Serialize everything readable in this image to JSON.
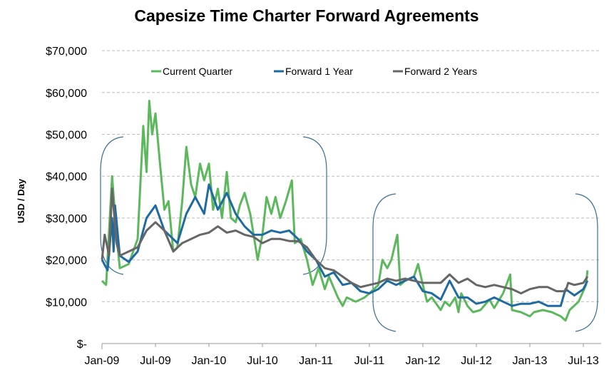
{
  "chart_data": {
    "type": "line",
    "title": "Capesize Time Charter Forward Agreements",
    "xlabel": "",
    "ylabel": "USD / Day",
    "ylim": [
      0,
      70000
    ],
    "yticks": [
      0,
      10000,
      20000,
      30000,
      40000,
      50000,
      60000,
      70000
    ],
    "ytick_labels": [
      "$-",
      "$10,000",
      "$20,000",
      "$30,000",
      "$40,000",
      "$50,000",
      "$60,000",
      "$70,000"
    ],
    "xtick_labels": [
      "Jan-09",
      "Jul-09",
      "Jan-10",
      "Jul-10",
      "Jan-11",
      "Jul-11",
      "Jan-12",
      "Jul-12",
      "Jan-13",
      "Jul-13"
    ],
    "xticks": [
      "2009-01-01",
      "2009-07-01",
      "2010-01-01",
      "2010-07-01",
      "2011-01-01",
      "2011-07-01",
      "2012-01-01",
      "2012-07-01",
      "2013-01-01",
      "2013-07-01"
    ],
    "grid": "horizontal-dashed",
    "legend": "top",
    "series": [
      {
        "name": "Current Quarter",
        "color": "#5cb85c",
        "points": [
          [
            "2009-01-01",
            15000
          ],
          [
            "2009-01-15",
            14000
          ],
          [
            "2009-02-05",
            40000
          ],
          [
            "2009-02-20",
            26000
          ],
          [
            "2009-03-01",
            18000
          ],
          [
            "2009-04-01",
            19000
          ],
          [
            "2009-05-01",
            25000
          ],
          [
            "2009-05-20",
            52000
          ],
          [
            "2009-06-01",
            41000
          ],
          [
            "2009-06-10",
            58000
          ],
          [
            "2009-06-20",
            50000
          ],
          [
            "2009-07-01",
            55000
          ],
          [
            "2009-07-15",
            44000
          ],
          [
            "2009-08-01",
            32000
          ],
          [
            "2009-08-15",
            34000
          ],
          [
            "2009-09-01",
            22000
          ],
          [
            "2009-09-15",
            23000
          ],
          [
            "2009-10-01",
            34000
          ],
          [
            "2009-10-15",
            47000
          ],
          [
            "2009-11-01",
            38000
          ],
          [
            "2009-11-15",
            35000
          ],
          [
            "2009-12-01",
            43000
          ],
          [
            "2009-12-15",
            39000
          ],
          [
            "2010-01-01",
            43000
          ],
          [
            "2010-01-15",
            32000
          ],
          [
            "2010-02-01",
            37000
          ],
          [
            "2010-02-15",
            30000
          ],
          [
            "2010-03-01",
            41000
          ],
          [
            "2010-03-15",
            30000
          ],
          [
            "2010-04-01",
            29000
          ],
          [
            "2010-04-15",
            33000
          ],
          [
            "2010-05-01",
            36000
          ],
          [
            "2010-05-20",
            31000
          ],
          [
            "2010-06-15",
            20000
          ],
          [
            "2010-07-01",
            26000
          ],
          [
            "2010-07-15",
            35000
          ],
          [
            "2010-08-01",
            31000
          ],
          [
            "2010-08-15",
            35000
          ],
          [
            "2010-09-01",
            30000
          ],
          [
            "2010-09-20",
            34000
          ],
          [
            "2010-10-10",
            39000
          ],
          [
            "2010-10-20",
            24000
          ],
          [
            "2010-11-10",
            25000
          ],
          [
            "2010-12-01",
            20000
          ],
          [
            "2010-12-20",
            14000
          ],
          [
            "2011-01-10",
            18000
          ],
          [
            "2011-02-01",
            13000
          ],
          [
            "2011-02-15",
            16000
          ],
          [
            "2011-03-15",
            11000
          ],
          [
            "2011-04-01",
            9000
          ],
          [
            "2011-04-15",
            11000
          ],
          [
            "2011-05-15",
            10000
          ],
          [
            "2011-06-15",
            11000
          ],
          [
            "2011-07-01",
            12000
          ],
          [
            "2011-08-01",
            14000
          ],
          [
            "2011-08-15",
            20000
          ],
          [
            "2011-09-01",
            18000
          ],
          [
            "2011-09-15",
            20000
          ],
          [
            "2011-10-05",
            26000
          ],
          [
            "2011-10-15",
            14000
          ],
          [
            "2011-11-01",
            15000
          ],
          [
            "2011-12-01",
            16000
          ],
          [
            "2011-12-15",
            19000
          ],
          [
            "2012-01-01",
            14000
          ],
          [
            "2012-01-15",
            10000
          ],
          [
            "2012-02-01",
            11000
          ],
          [
            "2012-03-01",
            8000
          ],
          [
            "2012-03-15",
            10000
          ],
          [
            "2012-04-01",
            9000
          ],
          [
            "2012-04-20",
            11000
          ],
          [
            "2012-05-01",
            7500
          ],
          [
            "2012-05-10",
            12000
          ],
          [
            "2012-06-01",
            9000
          ],
          [
            "2012-06-20",
            7500
          ],
          [
            "2012-07-15",
            8000
          ],
          [
            "2012-08-15",
            10500
          ],
          [
            "2012-09-01",
            8500
          ],
          [
            "2012-10-01",
            12000
          ],
          [
            "2012-10-25",
            16500
          ],
          [
            "2012-11-01",
            8000
          ],
          [
            "2012-12-01",
            7500
          ],
          [
            "2013-01-01",
            6500
          ],
          [
            "2013-01-15",
            7500
          ],
          [
            "2013-02-15",
            8000
          ],
          [
            "2013-03-15",
            7500
          ],
          [
            "2013-04-15",
            6500
          ],
          [
            "2013-05-01",
            5500
          ],
          [
            "2013-05-15",
            8000
          ],
          [
            "2013-06-15",
            10000
          ],
          [
            "2013-07-10",
            14000
          ],
          [
            "2013-07-15",
            17500
          ]
        ]
      },
      {
        "name": "Forward 1 Year",
        "color": "#1f6aa0",
        "points": [
          [
            "2009-01-01",
            20000
          ],
          [
            "2009-01-20",
            17500
          ],
          [
            "2009-02-05",
            30000
          ],
          [
            "2009-02-10",
            22000
          ],
          [
            "2009-02-15",
            33000
          ],
          [
            "2009-03-01",
            21000
          ],
          [
            "2009-04-01",
            19500
          ],
          [
            "2009-05-01",
            22000
          ],
          [
            "2009-06-01",
            30000
          ],
          [
            "2009-07-01",
            33000
          ],
          [
            "2009-08-01",
            27000
          ],
          [
            "2009-09-15",
            24000
          ],
          [
            "2009-10-15",
            31000
          ],
          [
            "2009-11-15",
            35000
          ],
          [
            "2009-12-15",
            31000
          ],
          [
            "2010-01-01",
            38000
          ],
          [
            "2010-02-01",
            32000
          ],
          [
            "2010-03-01",
            36000
          ],
          [
            "2010-04-01",
            31000
          ],
          [
            "2010-05-01",
            28000
          ],
          [
            "2010-06-01",
            26000
          ],
          [
            "2010-07-01",
            26000
          ],
          [
            "2010-08-01",
            27000
          ],
          [
            "2010-09-01",
            26500
          ],
          [
            "2010-10-01",
            27000
          ],
          [
            "2010-11-01",
            25000
          ],
          [
            "2010-12-01",
            22000
          ],
          [
            "2011-01-01",
            20000
          ],
          [
            "2011-02-01",
            16000
          ],
          [
            "2011-03-01",
            17000
          ],
          [
            "2011-04-01",
            14000
          ],
          [
            "2011-05-01",
            14500
          ],
          [
            "2011-06-01",
            12500
          ],
          [
            "2011-07-01",
            12000
          ],
          [
            "2011-08-01",
            13000
          ],
          [
            "2011-09-01",
            15000
          ],
          [
            "2011-10-01",
            14000
          ],
          [
            "2011-11-01",
            15000
          ],
          [
            "2011-12-01",
            16000
          ],
          [
            "2012-01-01",
            12500
          ],
          [
            "2012-02-01",
            12000
          ],
          [
            "2012-03-01",
            10500
          ],
          [
            "2012-04-01",
            15000
          ],
          [
            "2012-05-01",
            11000
          ],
          [
            "2012-06-01",
            11000
          ],
          [
            "2012-07-01",
            9500
          ],
          [
            "2012-08-01",
            10000
          ],
          [
            "2012-09-01",
            11000
          ],
          [
            "2012-10-01",
            10000
          ],
          [
            "2012-11-01",
            9000
          ],
          [
            "2012-12-01",
            9500
          ],
          [
            "2013-01-01",
            9500
          ],
          [
            "2013-02-01",
            10000
          ],
          [
            "2013-03-01",
            9000
          ],
          [
            "2013-04-15",
            9000
          ],
          [
            "2013-05-01",
            13000
          ],
          [
            "2013-06-01",
            11500
          ],
          [
            "2013-07-01",
            13000
          ],
          [
            "2013-07-15",
            15000
          ]
        ]
      },
      {
        "name": "Forward 2 Years",
        "color": "#666666",
        "points": [
          [
            "2009-01-01",
            20000
          ],
          [
            "2009-01-10",
            26000
          ],
          [
            "2009-01-25",
            21000
          ],
          [
            "2009-02-05",
            37000
          ],
          [
            "2009-02-20",
            24000
          ],
          [
            "2009-03-01",
            21000
          ],
          [
            "2009-04-01",
            22000
          ],
          [
            "2009-05-01",
            23000
          ],
          [
            "2009-06-01",
            27000
          ],
          [
            "2009-07-01",
            29000
          ],
          [
            "2009-08-01",
            27000
          ],
          [
            "2009-09-01",
            22000
          ],
          [
            "2009-10-01",
            24000
          ],
          [
            "2009-11-01",
            25000
          ],
          [
            "2009-12-01",
            26000
          ],
          [
            "2010-01-01",
            26500
          ],
          [
            "2010-02-01",
            28000
          ],
          [
            "2010-03-01",
            26500
          ],
          [
            "2010-04-01",
            27000
          ],
          [
            "2010-05-01",
            26000
          ],
          [
            "2010-06-01",
            25500
          ],
          [
            "2010-07-01",
            24000
          ],
          [
            "2010-08-01",
            25000
          ],
          [
            "2010-09-01",
            25000
          ],
          [
            "2010-10-01",
            24500
          ],
          [
            "2010-11-01",
            24500
          ],
          [
            "2010-12-01",
            23000
          ],
          [
            "2011-01-01",
            20000
          ],
          [
            "2011-02-01",
            18000
          ],
          [
            "2011-03-01",
            17500
          ],
          [
            "2011-04-01",
            16000
          ],
          [
            "2011-05-01",
            14500
          ],
          [
            "2011-06-01",
            13500
          ],
          [
            "2011-07-01",
            14000
          ],
          [
            "2011-08-01",
            14500
          ],
          [
            "2011-09-01",
            15500
          ],
          [
            "2011-10-01",
            15000
          ],
          [
            "2011-11-01",
            15500
          ],
          [
            "2011-12-01",
            15000
          ],
          [
            "2012-01-01",
            14500
          ],
          [
            "2012-02-01",
            14500
          ],
          [
            "2012-03-01",
            14500
          ],
          [
            "2012-04-01",
            16500
          ],
          [
            "2012-05-01",
            14500
          ],
          [
            "2012-06-01",
            15500
          ],
          [
            "2012-07-01",
            14000
          ],
          [
            "2012-08-01",
            13500
          ],
          [
            "2012-09-01",
            14000
          ],
          [
            "2012-10-01",
            13500
          ],
          [
            "2012-11-01",
            13000
          ],
          [
            "2012-12-01",
            12000
          ],
          [
            "2013-01-01",
            13000
          ],
          [
            "2013-02-01",
            13500
          ],
          [
            "2013-03-01",
            13500
          ],
          [
            "2013-04-01",
            12500
          ],
          [
            "2013-05-01",
            12500
          ],
          [
            "2013-05-10",
            14500
          ],
          [
            "2013-06-01",
            14000
          ],
          [
            "2013-07-01",
            14500
          ],
          [
            "2013-07-15",
            16000
          ]
        ]
      }
    ]
  }
}
